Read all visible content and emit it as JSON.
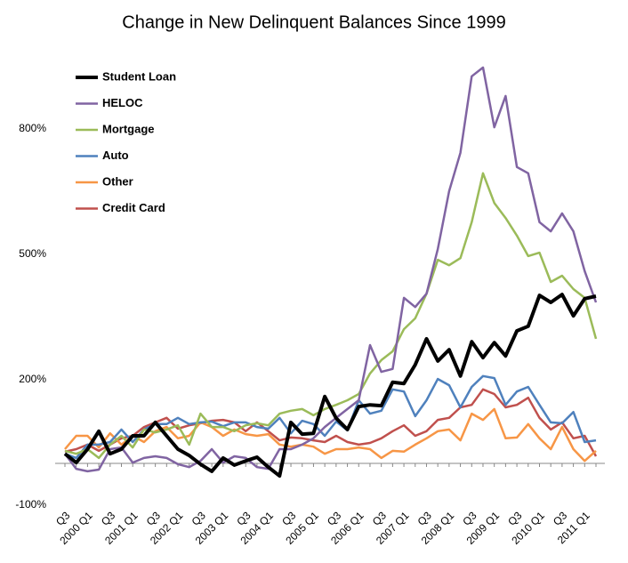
{
  "chart_data": {
    "type": "line",
    "title": "Change in New Delinquent Balances Since 1999",
    "categories": [
      "Q3",
      null,
      "2000 Q1",
      null,
      "Q3",
      null,
      "2001 Q1",
      null,
      "Q3",
      null,
      "2002 Q1",
      null,
      "Q3",
      null,
      "2003 Q1",
      null,
      "Q3",
      null,
      "2004 Q1",
      null,
      "Q3",
      null,
      "2005 Q1",
      null,
      "Q3",
      null,
      "2006 Q1",
      null,
      "Q3",
      null,
      "2007 Q1",
      null,
      "Q3",
      null,
      "2008 Q1",
      null,
      "Q3",
      null,
      "2009 Q1",
      null,
      "Q3",
      null,
      "2010 Q1",
      null,
      "Q3",
      null,
      "2011 Q1",
      null
    ],
    "ylim": [
      -100,
      1000
    ],
    "yticks": [
      {
        "value": -100,
        "label": "-100%"
      },
      {
        "value": 200,
        "label": "200%"
      },
      {
        "value": 500,
        "label": "500%"
      },
      {
        "value": 800,
        "label": "800%"
      }
    ],
    "legend": "top-left",
    "series": [
      {
        "name": "Student Loan",
        "color": "#000000",
        "values": [
          23,
          2,
          34,
          77,
          23,
          34,
          66,
          66,
          98,
          66,
          34,
          19,
          -2,
          -19,
          13,
          -4,
          6,
          15,
          -9,
          -30,
          98,
          70,
          72,
          160,
          108,
          81,
          136,
          140,
          138,
          194,
          191,
          236,
          298,
          245,
          272,
          209,
          291,
          253,
          289,
          257,
          317,
          328,
          402,
          385,
          404,
          353,
          394,
          400
        ]
      },
      {
        "name": "HELOC",
        "color": "#8064a2",
        "values": [
          23,
          -13,
          -19,
          -15,
          34,
          38,
          2,
          13,
          17,
          13,
          -2,
          -9,
          6,
          34,
          2,
          17,
          13,
          -9,
          -13,
          34,
          34,
          45,
          60,
          87,
          109,
          130,
          151,
          283,
          219,
          226,
          396,
          374,
          406,
          513,
          651,
          743,
          926,
          947,
          804,
          879,
          709,
          694,
          577,
          555,
          598,
          555,
          460,
          385
        ]
      },
      {
        "name": "Mortgage",
        "color": "#9bbb59",
        "values": [
          30,
          23,
          34,
          13,
          45,
          66,
          38,
          81,
          74,
          81,
          91,
          45,
          119,
          87,
          87,
          77,
          91,
          96,
          91,
          119,
          126,
          130,
          115,
          130,
          140,
          151,
          166,
          215,
          247,
          268,
          321,
          347,
          406,
          487,
          474,
          491,
          577,
          694,
          623,
          587,
          545,
          496,
          504,
          434,
          449,
          417,
          396,
          298
        ]
      },
      {
        "name": "Auto",
        "color": "#4f81bd",
        "values": [
          23,
          13,
          45,
          45,
          51,
          81,
          51,
          81,
          94,
          94,
          109,
          94,
          98,
          100,
          89,
          98,
          98,
          87,
          83,
          109,
          72,
          102,
          94,
          66,
          100,
          79,
          151,
          119,
          126,
          177,
          172,
          113,
          151,
          202,
          187,
          134,
          183,
          209,
          204,
          140,
          172,
          183,
          140,
          98,
          96,
          123,
          51,
          55
        ]
      },
      {
        "name": "Other",
        "color": "#f79646",
        "values": [
          34,
          66,
          66,
          38,
          72,
          45,
          66,
          51,
          77,
          87,
          60,
          66,
          98,
          87,
          66,
          81,
          70,
          66,
          70,
          45,
          40,
          45,
          40,
          23,
          34,
          34,
          38,
          34,
          13,
          30,
          28,
          45,
          60,
          77,
          81,
          55,
          119,
          104,
          130,
          60,
          62,
          94,
          60,
          34,
          87,
          34,
          6,
          30
        ]
      },
      {
        "name": "Credit Card",
        "color": "#c0504d",
        "values": [
          28,
          34,
          45,
          30,
          45,
          60,
          66,
          87,
          98,
          109,
          83,
          91,
          96,
          102,
          104,
          98,
          77,
          98,
          77,
          55,
          62,
          60,
          55,
          51,
          66,
          51,
          45,
          49,
          60,
          77,
          91,
          66,
          77,
          104,
          109,
          134,
          140,
          177,
          166,
          134,
          140,
          157,
          109,
          81,
          98,
          60,
          66,
          17
        ]
      }
    ]
  }
}
